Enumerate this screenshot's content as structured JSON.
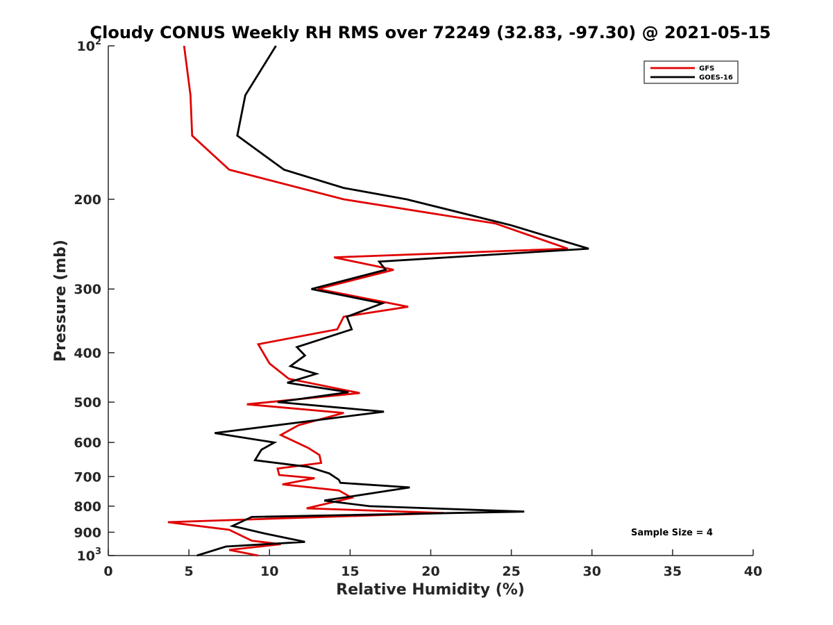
{
  "chart_data": {
    "type": "line",
    "title": "Cloudy CONUS Weekly RH RMS over 72249 (32.83, -97.30) @ 2021-05-15",
    "xlabel": "Relative Humidity (%)",
    "ylabel": "Pressure (mb)",
    "xlim": [
      0,
      40
    ],
    "ylim": [
      100,
      1000
    ],
    "y_scale": "log",
    "y_reversed": true,
    "grid": false,
    "legend_position": "top-right",
    "x_ticks": [
      "0",
      "5",
      "10",
      "15",
      "20",
      "25",
      "30",
      "35",
      "40"
    ],
    "y_ticks": [
      {
        "value": 100,
        "base": "10",
        "exp": "2"
      },
      {
        "value": 200,
        "label": "200"
      },
      {
        "value": 300,
        "label": "300"
      },
      {
        "value": 400,
        "label": "400"
      },
      {
        "value": 500,
        "label": "500"
      },
      {
        "value": 600,
        "label": "600"
      },
      {
        "value": 700,
        "label": "700"
      },
      {
        "value": 800,
        "label": "800"
      },
      {
        "value": 900,
        "label": "900"
      },
      {
        "value": 1000,
        "base": "10",
        "exp": "3"
      }
    ],
    "annotation": "Sample Size = 4",
    "series": [
      {
        "name": "GFS",
        "color": "#e00000",
        "points": [
          [
            4.7,
            100
          ],
          [
            5.1,
            125
          ],
          [
            5.2,
            150
          ],
          [
            7.5,
            175
          ],
          [
            14.6,
            200
          ],
          [
            24.0,
            223
          ],
          [
            28.5,
            250
          ],
          [
            14.0,
            260
          ],
          [
            17.7,
            275
          ],
          [
            13.0,
            300
          ],
          [
            18.6,
            325
          ],
          [
            14.6,
            340
          ],
          [
            14.2,
            360
          ],
          [
            9.3,
            385
          ],
          [
            10.0,
            420
          ],
          [
            11.2,
            450
          ],
          [
            15.6,
            480
          ],
          [
            8.6,
            505
          ],
          [
            14.6,
            525
          ],
          [
            11.8,
            555
          ],
          [
            10.7,
            580
          ],
          [
            12.4,
            615
          ],
          [
            13.1,
            635
          ],
          [
            13.2,
            658
          ],
          [
            10.5,
            675
          ],
          [
            10.6,
            695
          ],
          [
            12.8,
            705
          ],
          [
            10.8,
            725
          ],
          [
            14.3,
            745
          ],
          [
            15.1,
            770
          ],
          [
            12.3,
            808
          ],
          [
            20.8,
            825
          ],
          [
            3.7,
            860
          ],
          [
            7.5,
            890
          ],
          [
            8.9,
            935
          ],
          [
            10.7,
            950
          ],
          [
            7.5,
            975
          ],
          [
            9.3,
            1000
          ]
        ]
      },
      {
        "name": "GOES-16",
        "color": "#000000",
        "points": [
          [
            10.4,
            100
          ],
          [
            8.5,
            125
          ],
          [
            8.0,
            150
          ],
          [
            10.9,
            175
          ],
          [
            14.6,
            190
          ],
          [
            18.5,
            200
          ],
          [
            25.0,
            225
          ],
          [
            29.8,
            250
          ],
          [
            16.8,
            265
          ],
          [
            17.2,
            275
          ],
          [
            12.6,
            300
          ],
          [
            17.0,
            320
          ],
          [
            14.8,
            340
          ],
          [
            15.1,
            360
          ],
          [
            11.7,
            390
          ],
          [
            12.2,
            405
          ],
          [
            11.3,
            425
          ],
          [
            12.9,
            440
          ],
          [
            11.1,
            458
          ],
          [
            14.9,
            478
          ],
          [
            10.5,
            500
          ],
          [
            17.1,
            522
          ],
          [
            6.6,
            575
          ],
          [
            10.3,
            600
          ],
          [
            9.5,
            620
          ],
          [
            9.1,
            650
          ],
          [
            12.4,
            670
          ],
          [
            13.7,
            690
          ],
          [
            14.3,
            710
          ],
          [
            14.4,
            720
          ],
          [
            18.7,
            735
          ],
          [
            13.4,
            780
          ],
          [
            16.2,
            800
          ],
          [
            25.8,
            820
          ],
          [
            8.9,
            840
          ],
          [
            7.7,
            875
          ],
          [
            9.7,
            905
          ],
          [
            12.2,
            940
          ],
          [
            7.3,
            960
          ],
          [
            5.5,
            1000
          ]
        ]
      }
    ]
  }
}
